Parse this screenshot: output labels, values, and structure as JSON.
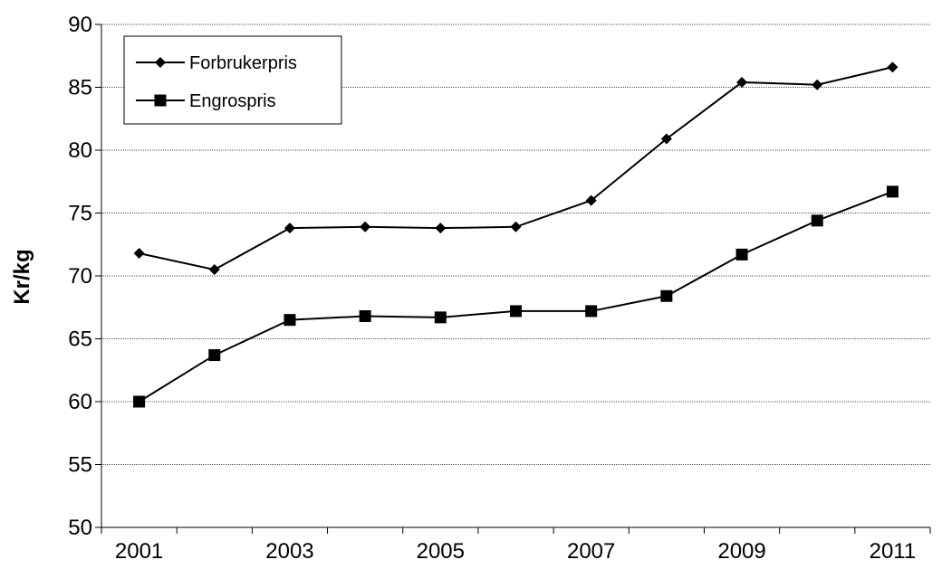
{
  "chart_data": {
    "type": "line",
    "title": "",
    "xlabel": "",
    "ylabel": "Kr/kg",
    "ylim": [
      50,
      90
    ],
    "yticks": [
      50,
      55,
      60,
      65,
      70,
      75,
      80,
      85,
      90
    ],
    "xtick_labels": [
      "2001",
      "2003",
      "2005",
      "2007",
      "2009",
      "2011"
    ],
    "x": [
      2001,
      2002,
      2003,
      2004,
      2005,
      2006,
      2007,
      2008,
      2009,
      2010,
      2011
    ],
    "grid": "horizontal",
    "legend_position": "top-left",
    "series": [
      {
        "name": "Forbrukerpris",
        "marker": "diamond",
        "color": "#000000",
        "values": [
          71.8,
          70.5,
          73.8,
          73.9,
          73.8,
          73.9,
          76.0,
          80.9,
          85.4,
          85.2,
          86.6
        ]
      },
      {
        "name": "Engrospris",
        "marker": "square",
        "color": "#000000",
        "values": [
          60.0,
          63.7,
          66.5,
          66.8,
          66.7,
          67.2,
          67.2,
          68.4,
          71.7,
          74.4,
          76.7
        ]
      }
    ]
  }
}
